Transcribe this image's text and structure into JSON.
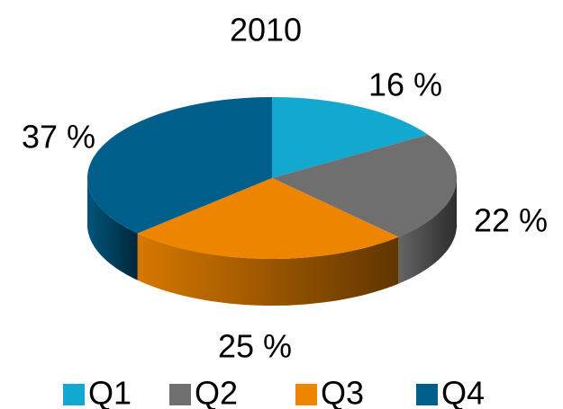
{
  "chart_data": {
    "type": "pie",
    "title": "2010",
    "categories": [
      "Q1",
      "Q2",
      "Q3",
      "Q4"
    ],
    "values": [
      16,
      22,
      25,
      37
    ],
    "value_labels": [
      "16 %",
      "22 %",
      "25 %",
      "37 %"
    ],
    "colors": [
      "#13a8cf",
      "#6f6f6f",
      "#ee8500",
      "#005f8a"
    ],
    "legend": "bottom"
  }
}
